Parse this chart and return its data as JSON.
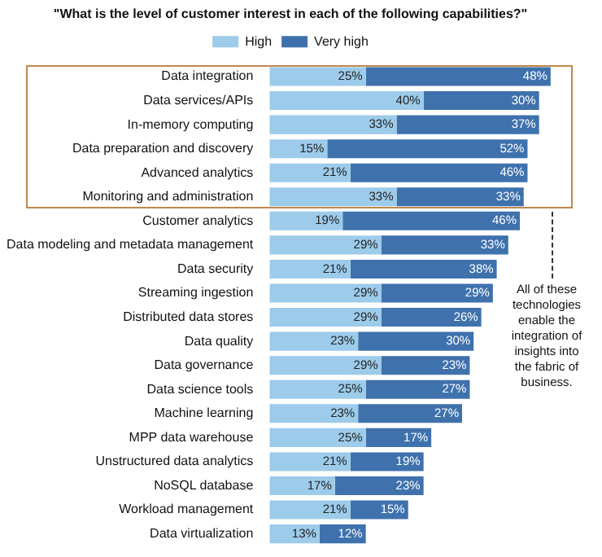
{
  "chart_data": {
    "type": "bar",
    "orientation": "horizontal",
    "stacked": true,
    "title": "\"What is the level of customer interest in each of the following capabilities?\"",
    "categories": [
      "Data integration",
      "Data services/APIs",
      "In-memory computing",
      "Data preparation and discovery",
      "Advanced analytics",
      "Monitoring and administration",
      "Customer analytics",
      "Data modeling and metadata management",
      "Data security",
      "Streaming ingestion",
      "Distributed data stores",
      "Data quality",
      "Data governance",
      "Data science tools",
      "Machine learning",
      "MPP data warehouse",
      "Unstructured data analytics",
      "NoSQL database",
      "Workload management",
      "Data virtualization"
    ],
    "series": [
      {
        "name": "High",
        "color": "#9dcbea",
        "values": [
          25,
          40,
          33,
          15,
          21,
          33,
          19,
          29,
          21,
          29,
          29,
          23,
          29,
          25,
          23,
          25,
          21,
          17,
          21,
          13
        ],
        "value_labels": [
          "25%",
          "40%",
          "33%",
          "15%",
          "21%",
          "33%",
          "19%",
          "29%",
          "21%",
          "29%",
          "29%",
          "23%",
          "29%",
          "25%",
          "23%",
          "25%",
          "21%",
          "17%",
          "21%",
          "13%"
        ]
      },
      {
        "name": "Very high",
        "color": "#3f72ad",
        "values": [
          48,
          30,
          37,
          52,
          46,
          33,
          46,
          33,
          38,
          29,
          26,
          30,
          23,
          27,
          27,
          17,
          19,
          23,
          15,
          12
        ],
        "value_labels": [
          "48%",
          "30%",
          "37%",
          "52%",
          "46%",
          "33%",
          "46%",
          "33%",
          "38%",
          "29%",
          "26%",
          "30%",
          "23%",
          "27%",
          "27%",
          "17%",
          "19%",
          "23%",
          "15%",
          "12%"
        ]
      }
    ],
    "tick_labels": "y",
    "legend": "top",
    "annotations": [
      "All of these technologies enable the integration of insights into the fabric of business."
    ]
  }
}
